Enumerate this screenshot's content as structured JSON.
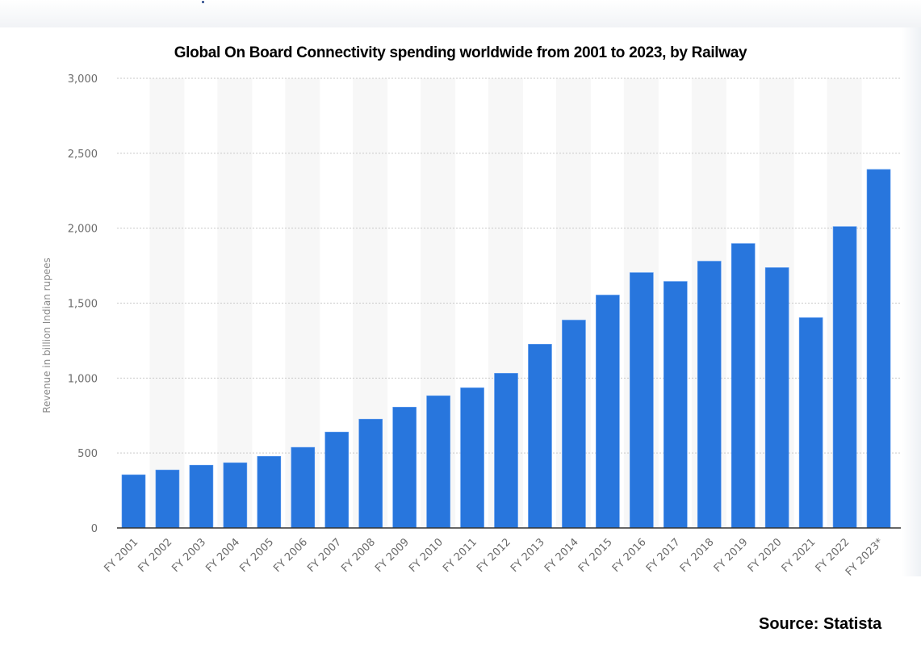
{
  "chart_data": {
    "type": "bar",
    "title": "Global On Board Connectivity spending worldwide from 2001 to 2023, by Railway",
    "xlabel": "",
    "ylabel": "Revenue in billion Indian rupees",
    "ylim": [
      0,
      3000
    ],
    "yticks": [
      0,
      500,
      1000,
      1500,
      2000,
      2500,
      3000
    ],
    "ytick_labels": [
      "0",
      "500",
      "1,000",
      "1,500",
      "2,000",
      "2,500",
      "3,000"
    ],
    "grid": true,
    "legend": "none",
    "categories": [
      "FY 2001",
      "FY 2002",
      "FY 2003",
      "FY 2004",
      "FY 2005",
      "FY 2006",
      "FY 2007",
      "FY 2008",
      "FY 2009",
      "FY 2010",
      "FY 2011",
      "FY 2012",
      "FY 2013",
      "FY 2014",
      "FY 2015",
      "FY 2016",
      "FY 2017",
      "FY 2018",
      "FY 2019",
      "FY 2020",
      "FY 2021",
      "FY 2022",
      "FY 2023*"
    ],
    "values": [
      355,
      387,
      419,
      435,
      478,
      538,
      640,
      726,
      806,
      882,
      935,
      1032,
      1226,
      1387,
      1554,
      1704,
      1645,
      1780,
      1898,
      1737,
      1403,
      2011,
      2392
    ],
    "bar_color": "#2876dd",
    "source": "Source: Statista"
  }
}
